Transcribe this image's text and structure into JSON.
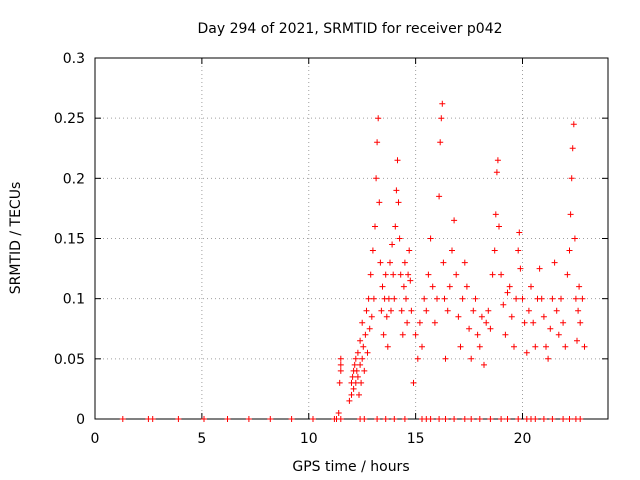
{
  "chart_data": {
    "type": "scatter",
    "title": "Day 294 of 2021, SRMTID for receiver p042",
    "xlabel": "GPS time / hours",
    "ylabel": "SRMTID / TECUs",
    "xlim": [
      0,
      24
    ],
    "ylim": [
      0,
      0.3
    ],
    "xticks": [
      0,
      5,
      10,
      15,
      20
    ],
    "yticks": [
      0,
      0.05,
      0.1,
      0.15,
      0.2,
      0.25,
      0.3
    ],
    "xtick_labels": [
      "0",
      "5",
      "10",
      "15",
      "20"
    ],
    "ytick_labels": [
      "0",
      "0.05",
      "0.1",
      "0.15",
      "0.2",
      "0.25",
      "0.3"
    ],
    "grid": true,
    "marker": "+",
    "color": "#ff0000",
    "series": [
      {
        "name": "SRMTID",
        "points": [
          [
            1.3,
            0
          ],
          [
            2.5,
            0
          ],
          [
            2.7,
            0
          ],
          [
            3.9,
            0
          ],
          [
            5.1,
            0
          ],
          [
            6.2,
            0
          ],
          [
            7.2,
            0
          ],
          [
            8.2,
            0
          ],
          [
            9.2,
            0
          ],
          [
            10.2,
            0
          ],
          [
            11.3,
            0
          ],
          [
            11.5,
            0
          ],
          [
            11.4,
            0.005
          ],
          [
            11.5,
            0.05
          ],
          [
            11.5,
            0.04
          ],
          [
            11.45,
            0.03
          ],
          [
            11.5,
            0.045
          ],
          [
            11.9,
            0.015
          ],
          [
            12.0,
            0.02
          ],
          [
            12.0,
            0.03
          ],
          [
            12.05,
            0.035
          ],
          [
            12.1,
            0.04
          ],
          [
            12.1,
            0.025
          ],
          [
            12.15,
            0.045
          ],
          [
            12.2,
            0.03
          ],
          [
            12.2,
            0.05
          ],
          [
            12.25,
            0.04
          ],
          [
            12.3,
            0.035
          ],
          [
            12.3,
            0.055
          ],
          [
            12.35,
            0.02
          ],
          [
            12.4,
            0.045
          ],
          [
            12.4,
            0.065
          ],
          [
            12.45,
            0.03
          ],
          [
            12.5,
            0.05
          ],
          [
            12.5,
            0.08
          ],
          [
            12.55,
            0.06
          ],
          [
            12.6,
            0.04
          ],
          [
            12.65,
            0.07
          ],
          [
            12.7,
            0.09
          ],
          [
            12.75,
            0.055
          ],
          [
            12.8,
            0.1
          ],
          [
            12.85,
            0.075
          ],
          [
            12.9,
            0.12
          ],
          [
            12.95,
            0.085
          ],
          [
            13.0,
            0.14
          ],
          [
            13.05,
            0.1
          ],
          [
            13.1,
            0.16
          ],
          [
            13.15,
            0.2
          ],
          [
            13.2,
            0.23
          ],
          [
            13.25,
            0.25
          ],
          [
            13.3,
            0.18
          ],
          [
            13.35,
            0.13
          ],
          [
            13.4,
            0.09
          ],
          [
            13.45,
            0.11
          ],
          [
            13.5,
            0.07
          ],
          [
            13.55,
            0.1
          ],
          [
            13.6,
            0.12
          ],
          [
            13.65,
            0.085
          ],
          [
            13.7,
            0.06
          ],
          [
            13.75,
            0.1
          ],
          [
            13.8,
            0.13
          ],
          [
            13.85,
            0.09
          ],
          [
            13.9,
            0.145
          ],
          [
            13.95,
            0.12
          ],
          [
            14.0,
            0.1
          ],
          [
            14.05,
            0.16
          ],
          [
            14.1,
            0.19
          ],
          [
            14.15,
            0.215
          ],
          [
            14.2,
            0.18
          ],
          [
            14.25,
            0.15
          ],
          [
            14.3,
            0.12
          ],
          [
            14.35,
            0.09
          ],
          [
            14.4,
            0.07
          ],
          [
            14.45,
            0.11
          ],
          [
            14.5,
            0.13
          ],
          [
            14.55,
            0.1
          ],
          [
            14.6,
            0.08
          ],
          [
            14.65,
            0.12
          ],
          [
            14.7,
            0.14
          ],
          [
            14.75,
            0.115
          ],
          [
            14.8,
            0.09
          ],
          [
            14.9,
            0.03
          ],
          [
            15.0,
            0.07
          ],
          [
            15.1,
            0.05
          ],
          [
            15.2,
            0.08
          ],
          [
            15.3,
            0.06
          ],
          [
            15.4,
            0.1
          ],
          [
            15.5,
            0.09
          ],
          [
            15.6,
            0.12
          ],
          [
            15.7,
            0.15
          ],
          [
            15.8,
            0.11
          ],
          [
            15.9,
            0.08
          ],
          [
            16.0,
            0.1
          ],
          [
            16.1,
            0.185
          ],
          [
            16.15,
            0.23
          ],
          [
            16.2,
            0.25
          ],
          [
            16.25,
            0.262
          ],
          [
            16.3,
            0.13
          ],
          [
            16.35,
            0.1
          ],
          [
            16.4,
            0.05
          ],
          [
            16.5,
            0.09
          ],
          [
            16.6,
            0.11
          ],
          [
            16.7,
            0.14
          ],
          [
            16.8,
            0.165
          ],
          [
            16.9,
            0.12
          ],
          [
            17.0,
            0.085
          ],
          [
            17.1,
            0.06
          ],
          [
            17.2,
            0.1
          ],
          [
            17.3,
            0.13
          ],
          [
            17.4,
            0.11
          ],
          [
            17.5,
            0.075
          ],
          [
            17.6,
            0.05
          ],
          [
            17.7,
            0.09
          ],
          [
            17.8,
            0.1
          ],
          [
            17.9,
            0.07
          ],
          [
            18.0,
            0.06
          ],
          [
            18.1,
            0.085
          ],
          [
            18.2,
            0.045
          ],
          [
            18.3,
            0.08
          ],
          [
            18.4,
            0.09
          ],
          [
            18.5,
            0.075
          ],
          [
            18.6,
            0.12
          ],
          [
            18.7,
            0.14
          ],
          [
            18.75,
            0.17
          ],
          [
            18.8,
            0.205
          ],
          [
            18.85,
            0.215
          ],
          [
            18.9,
            0.16
          ],
          [
            19.0,
            0.12
          ],
          [
            19.1,
            0.095
          ],
          [
            19.2,
            0.07
          ],
          [
            19.3,
            0.105
          ],
          [
            19.4,
            0.11
          ],
          [
            19.5,
            0.085
          ],
          [
            19.6,
            0.06
          ],
          [
            19.7,
            0.1
          ],
          [
            19.8,
            0.14
          ],
          [
            19.85,
            0.155
          ],
          [
            19.9,
            0.125
          ],
          [
            20.0,
            0.1
          ],
          [
            20.1,
            0.08
          ],
          [
            20.2,
            0.055
          ],
          [
            20.3,
            0.09
          ],
          [
            20.4,
            0.11
          ],
          [
            20.5,
            0.08
          ],
          [
            20.6,
            0.06
          ],
          [
            20.7,
            0.1
          ],
          [
            20.8,
            0.125
          ],
          [
            20.9,
            0.1
          ],
          [
            21.0,
            0.085
          ],
          [
            21.1,
            0.06
          ],
          [
            21.2,
            0.05
          ],
          [
            21.3,
            0.075
          ],
          [
            21.4,
            0.1
          ],
          [
            21.5,
            0.13
          ],
          [
            21.6,
            0.09
          ],
          [
            21.7,
            0.07
          ],
          [
            21.8,
            0.1
          ],
          [
            21.9,
            0.08
          ],
          [
            22.0,
            0.06
          ],
          [
            22.1,
            0.12
          ],
          [
            22.2,
            0.14
          ],
          [
            22.25,
            0.17
          ],
          [
            22.3,
            0.2
          ],
          [
            22.35,
            0.225
          ],
          [
            22.4,
            0.245
          ],
          [
            22.45,
            0.15
          ],
          [
            22.5,
            0.1
          ],
          [
            22.55,
            0.065
          ],
          [
            22.6,
            0.09
          ],
          [
            22.65,
            0.11
          ],
          [
            22.7,
            0.08
          ],
          [
            22.8,
            0.1
          ],
          [
            22.9,
            0.06
          ],
          [
            11.2,
            0
          ],
          [
            12.4,
            0
          ],
          [
            12.6,
            0
          ],
          [
            13.2,
            0
          ],
          [
            13.6,
            0
          ],
          [
            14.0,
            0
          ],
          [
            14.5,
            0
          ],
          [
            15.3,
            0
          ],
          [
            15.5,
            0
          ],
          [
            15.7,
            0
          ],
          [
            16.1,
            0
          ],
          [
            16.4,
            0
          ],
          [
            16.8,
            0
          ],
          [
            17.3,
            0
          ],
          [
            17.6,
            0
          ],
          [
            18.0,
            0
          ],
          [
            18.5,
            0
          ],
          [
            19.0,
            0
          ],
          [
            19.3,
            0
          ],
          [
            19.8,
            0
          ],
          [
            20.2,
            0
          ],
          [
            20.4,
            0
          ],
          [
            20.6,
            0
          ],
          [
            21.0,
            0
          ],
          [
            21.4,
            0
          ],
          [
            21.9,
            0
          ],
          [
            22.2,
            0
          ],
          [
            22.5,
            0
          ],
          [
            22.7,
            0
          ]
        ]
      }
    ]
  }
}
